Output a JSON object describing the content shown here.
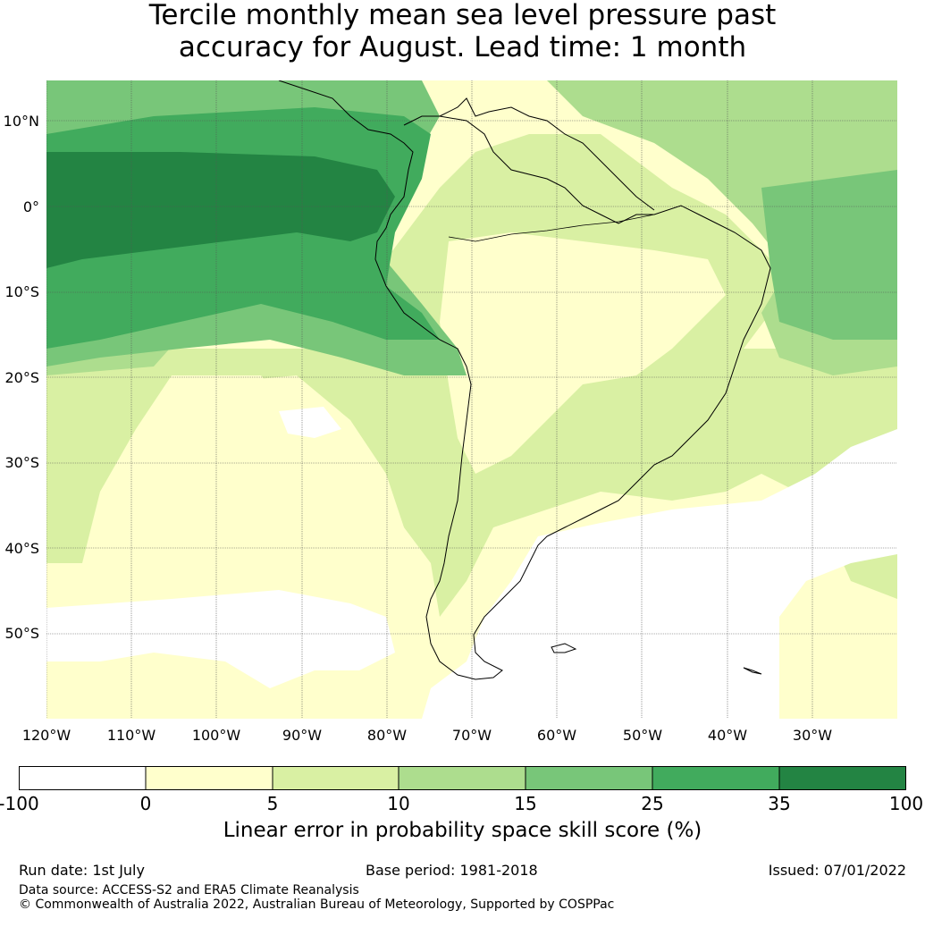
{
  "title": {
    "line1": "Tercile monthly mean sea level pressure past",
    "line2": "accuracy for August. Lead time: 1 month"
  },
  "map": {
    "latitude_labels": [
      "10°N",
      "0°",
      "10°S",
      "20°S",
      "30°S",
      "40°S",
      "50°S"
    ],
    "longitude_labels": [
      "120°W",
      "110°W",
      "100°W",
      "90°W",
      "80°W",
      "70°W",
      "60°W",
      "50°W",
      "40°W",
      "30°W"
    ],
    "colors": {
      "class_-100_0": "#ffffff",
      "class_0_5": "#ffffcc",
      "class_5_10": "#d9f0a3",
      "class_10_15": "#addd8e",
      "class_15_25": "#78c679",
      "class_25_35": "#41ab5d",
      "class_35_100": "#238443",
      "coastline": "#000000",
      "gridline": "#555555"
    }
  },
  "colorbar": {
    "ticks": [
      "-100",
      "0",
      "5",
      "10",
      "15",
      "25",
      "35",
      "100"
    ],
    "colors": [
      "#ffffff",
      "#ffffcc",
      "#d9f0a3",
      "#addd8e",
      "#78c679",
      "#41ab5d",
      "#238443"
    ],
    "label": "Linear error in probability space skill score (%)"
  },
  "footer": {
    "run_date": "Run date: 1st July",
    "base_period": "Base period: 1981-2018",
    "issued": "Issued: 07/01/2022",
    "data_source": "Data source: ACCESS-S2 and ERA5 Climate Reanalysis",
    "copyright": "© Commonwealth of Australia 2022, Australian Bureau of Meteorology, Supported by COSPPac"
  }
}
